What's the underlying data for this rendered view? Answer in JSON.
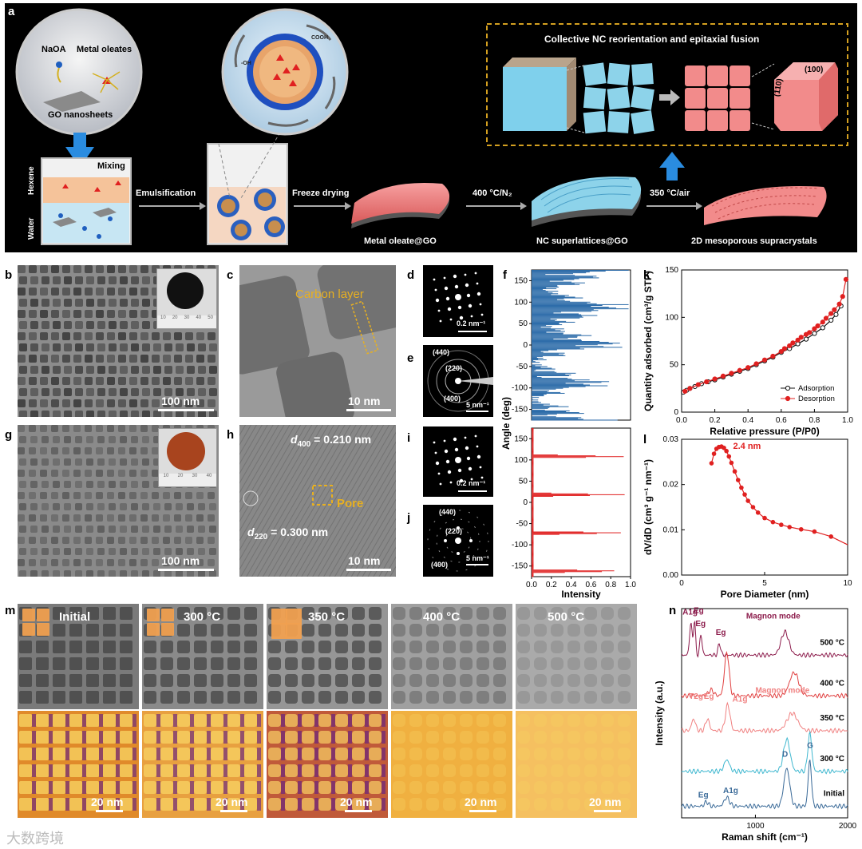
{
  "panel_labels": {
    "a": "a",
    "b": "b",
    "c": "c",
    "d": "d",
    "e": "e",
    "f": "f",
    "g": "g",
    "h": "h",
    "i": "i",
    "j": "j",
    "k": "k",
    "l": "l",
    "m": "m",
    "n": "n"
  },
  "schematic": {
    "naoa": "NaOA",
    "metal_oleates": "Metal oleates",
    "go_nanosheets": "GO nanosheets",
    "mixing": "Mixing",
    "hexene": "Hexene",
    "water": "Water",
    "emulsification": "Emulsification",
    "freeze_drying": "Freeze drying",
    "step_400": "400 °C/N₂",
    "step_350": "350 °C/air",
    "metal_oleate_go": "Metal oleate@GO",
    "nc_superlattices": "NC superlattices@GO",
    "supracrystals": "2D mesoporous supracrystals",
    "collective_title": "Collective NC reorientation and epitaxial fusion",
    "facet_100": "(100)",
    "facet_110": "(110)",
    "cooh": "COOH",
    "oh": "-OH"
  },
  "tem": {
    "b_scale": "100 nm",
    "c_scale": "10 nm",
    "c_carbon": "Carbon layer",
    "d_scale": "0.2 nm⁻¹",
    "e_scale": "5 nm⁻¹",
    "e_rings": [
      "(440)",
      "(220)",
      "(400)"
    ],
    "g_scale": "100 nm",
    "h_scale": "10 nm",
    "h_d400": "d400 = 0.210 nm",
    "h_d220": "d220 = 0.300 nm",
    "h_pore": "Pore",
    "i_scale": "0.2 nm⁻¹",
    "j_scale": "5 nm⁻¹",
    "j_rings": [
      "(440)",
      "(220)",
      "(400)"
    ],
    "ruler_b": [
      "10",
      "20",
      "30",
      "40",
      "50"
    ],
    "ruler_g": [
      "10",
      "20",
      "30",
      "40"
    ]
  },
  "m_panel": {
    "temps": [
      "Initial",
      "300 °C",
      "350 °C",
      "400 °C",
      "500 °C"
    ],
    "scale": "20 nm"
  },
  "chart_data": [
    {
      "id": "f",
      "type": "bar",
      "xlabel": "Intensity",
      "ylabel": "Angle (deg)",
      "xlim": [
        0,
        1.0
      ],
      "xticks": [
        "0.0",
        "0.2",
        "0.4",
        "0.6",
        "0.8",
        "1.0"
      ],
      "upper": {
        "ylim": [
          -175,
          175
        ],
        "yticks": [
          "150",
          "100",
          "50",
          "0",
          "-50",
          "-100",
          "-150"
        ],
        "color": "#2a6aa8"
      },
      "lower": {
        "ylim": [
          -175,
          175
        ],
        "yticks": [
          "150",
          "100",
          "50",
          "0",
          "-50",
          "-100",
          "-150"
        ],
        "color": "#e02020",
        "peaks": [
          {
            "angle": 108,
            "intensity": 0.98
          },
          {
            "angle": 18,
            "intensity": 0.95
          },
          {
            "angle": -72,
            "intensity": 0.97
          },
          {
            "angle": -162,
            "intensity": 0.96
          }
        ]
      }
    },
    {
      "id": "k",
      "type": "line",
      "xlabel": "Relative pressure (P/P0)",
      "ylabel": "Quantity adsorbed (cm³/g STP)",
      "xlim": [
        0,
        1.0
      ],
      "ylim": [
        0,
        150
      ],
      "xticks": [
        "0.0",
        "0.2",
        "0.4",
        "0.6",
        "0.8",
        "1.0"
      ],
      "yticks": [
        "0",
        "50",
        "100",
        "150"
      ],
      "legend_placement": "bottom-right",
      "series": [
        {
          "name": "Adsorption",
          "color": "#111111",
          "x": [
            0.01,
            0.03,
            0.05,
            0.08,
            0.12,
            0.16,
            0.2,
            0.25,
            0.3,
            0.35,
            0.4,
            0.45,
            0.5,
            0.55,
            0.6,
            0.65,
            0.7,
            0.75,
            0.8,
            0.85,
            0.9,
            0.93,
            0.96
          ],
          "y": [
            21,
            23,
            25,
            27,
            30,
            32,
            34,
            37,
            40,
            43,
            46,
            50,
            54,
            58,
            63,
            67,
            72,
            77,
            83,
            89,
            97,
            103,
            112
          ]
        },
        {
          "name": "Desorption",
          "color": "#e02020",
          "x": [
            0.99,
            0.97,
            0.95,
            0.92,
            0.9,
            0.87,
            0.85,
            0.82,
            0.8,
            0.77,
            0.75,
            0.72,
            0.7,
            0.67,
            0.65,
            0.62,
            0.6,
            0.55,
            0.5,
            0.45,
            0.4,
            0.35,
            0.3,
            0.25,
            0.2,
            0.15,
            0.1,
            0.05,
            0.02
          ],
          "y": [
            140,
            122,
            114,
            108,
            104,
            99,
            95,
            91,
            88,
            84,
            82,
            79,
            76,
            73,
            70,
            67,
            64,
            59,
            55,
            51,
            47,
            44,
            41,
            38,
            35,
            32,
            29,
            25,
            22
          ]
        }
      ]
    },
    {
      "id": "l",
      "type": "line",
      "xlabel": "Pore Diameter (nm)",
      "ylabel": "dV/dD (cm³ g⁻¹ nm⁻¹)",
      "xlim": [
        0,
        10
      ],
      "ylim": [
        0,
        0.03
      ],
      "xticks": [
        "0",
        "5",
        "10"
      ],
      "yticks": [
        "0.00",
        "0.01",
        "0.02",
        "0.03"
      ],
      "annotation": "2.4 nm",
      "series": [
        {
          "name": "",
          "color": "#e02020",
          "x": [
            1.8,
            1.95,
            2.1,
            2.25,
            2.4,
            2.55,
            2.7,
            2.85,
            3.0,
            3.2,
            3.4,
            3.6,
            3.8,
            4.0,
            4.3,
            4.6,
            5.0,
            5.5,
            6.0,
            6.5,
            7.2,
            8.0,
            9.0,
            10.0
          ],
          "y": [
            0.0247,
            0.0268,
            0.0279,
            0.0283,
            0.0284,
            0.0281,
            0.0274,
            0.0262,
            0.0248,
            0.0229,
            0.021,
            0.0193,
            0.0178,
            0.0164,
            0.015,
            0.0138,
            0.0126,
            0.0117,
            0.0111,
            0.0106,
            0.0101,
            0.0096,
            0.0085,
            0.0067
          ]
        }
      ]
    },
    {
      "id": "n",
      "type": "line",
      "xlabel": "Raman shift (cm⁻¹)",
      "ylabel": "Intensity (a.u.)",
      "xlim": [
        200,
        2000
      ],
      "xticks": [
        "1000",
        "2000"
      ],
      "traces": [
        {
          "name": "500 °C",
          "color": "#8b1a4a",
          "offset": 5.6
        },
        {
          "name": "400 °C",
          "color": "#e04040",
          "offset": 4.2
        },
        {
          "name": "350 °C",
          "color": "#f08080",
          "offset": 3.0
        },
        {
          "name": "300 °C",
          "color": "#40b8d0",
          "offset": 1.6
        },
        {
          "name": "Initial",
          "color": "#3a6a98",
          "offset": 0.4
        }
      ],
      "annotations": {
        "a1g_500": "A1g",
        "eg_500a": "Eg",
        "eg_500b": "Eg",
        "eg_500c": "Eg",
        "magnon_500": "Magnon mode",
        "t2g_350": "T2g",
        "eg_350": "Eg",
        "a1g_350": "A1g",
        "magnon_350": "Magnon mode",
        "d": "D",
        "g": "G",
        "eg_init": "Eg",
        "a1g_init": "A1g"
      }
    }
  ],
  "watermark": "大数跨境"
}
